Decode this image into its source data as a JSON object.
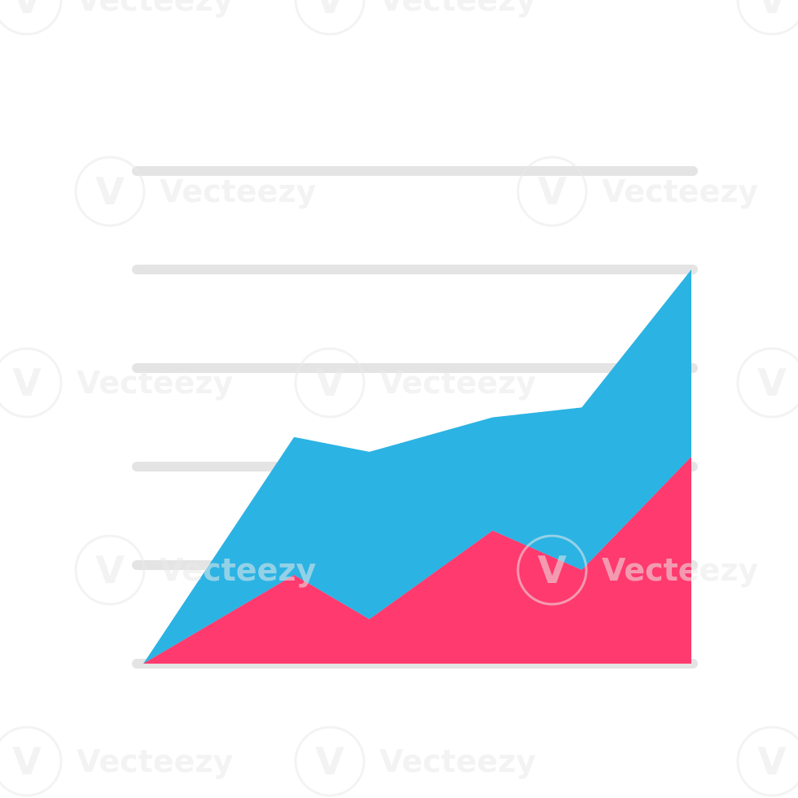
{
  "watermark": {
    "text": "Vecteezy"
  },
  "chart_data": {
    "type": "area",
    "stacked": true,
    "grid": true,
    "x": [
      0,
      1.1,
      1.65,
      2.55,
      3.2,
      4.0
    ],
    "ylim": [
      0,
      5
    ],
    "series": [
      {
        "color": "#ff3a6e",
        "values": [
          0,
          0.9,
          0.45,
          1.35,
          0.95,
          2.1
        ]
      },
      {
        "color": "#2bb3e3",
        "values": [
          0,
          1.4,
          1.7,
          1.15,
          1.65,
          1.9
        ]
      }
    ],
    "colors": {
      "grid": "#e4e4e4"
    }
  }
}
